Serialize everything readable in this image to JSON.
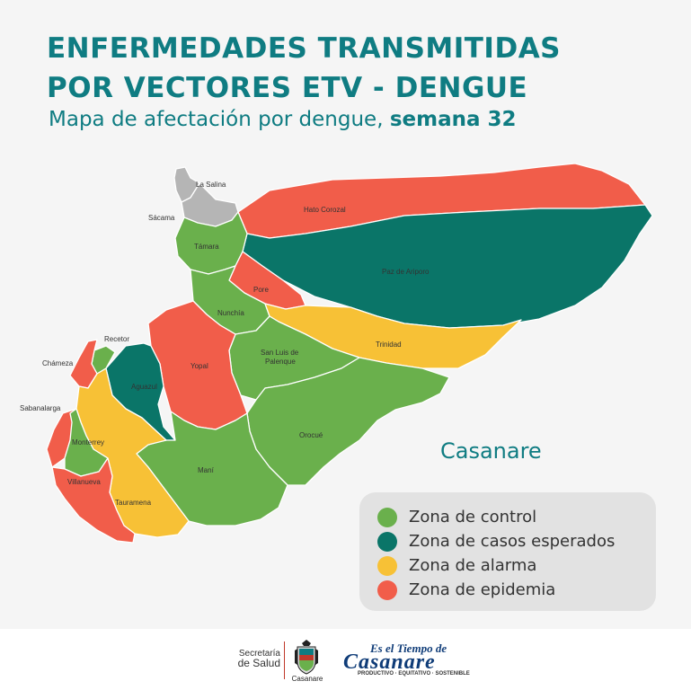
{
  "header": {
    "title_line1": "ENFERMEDADES TRANSMITIDAS",
    "title_line2": "POR VECTORES ETV - DENGUE",
    "subtitle_prefix": "Mapa de afectación por dengue,",
    "subtitle_bold": "semana 32"
  },
  "map": {
    "region_name": "Casanare",
    "colors": {
      "control": "#6ab04c",
      "esperados": "#0a7568",
      "alarma": "#f7c136",
      "epidemia": "#f15d4a",
      "sin_dato": "#b5b5b5"
    },
    "municipalities": [
      {
        "name": "Hato Corozal",
        "zone": "epidemia"
      },
      {
        "name": "Paz de Ariporo",
        "zone": "esperados"
      },
      {
        "name": "La Salina",
        "zone": "sin_dato"
      },
      {
        "name": "Sácama",
        "zone": "sin_dato"
      },
      {
        "name": "Támara",
        "zone": "control"
      },
      {
        "name": "Pore",
        "zone": "epidemia"
      },
      {
        "name": "Nunchía",
        "zone": "control"
      },
      {
        "name": "Trinidad",
        "zone": "alarma"
      },
      {
        "name": "San Luis de Palenque",
        "zone": "control"
      },
      {
        "name": "Yopal",
        "zone": "epidemia"
      },
      {
        "name": "Aguazul",
        "zone": "esperados"
      },
      {
        "name": "Recetor",
        "zone": "control"
      },
      {
        "name": "Chámeza",
        "zone": "epidemia"
      },
      {
        "name": "Sabanalarga",
        "zone": "epidemia"
      },
      {
        "name": "Monterrey",
        "zone": "control"
      },
      {
        "name": "Villanueva",
        "zone": "epidemia"
      },
      {
        "name": "Tauramena",
        "zone": "alarma"
      },
      {
        "name": "Maní",
        "zone": "control"
      },
      {
        "name": "Orocué",
        "zone": "control"
      }
    ]
  },
  "legend": {
    "items": [
      {
        "label": "Zona de control",
        "color": "#6ab04c"
      },
      {
        "label": "Zona de casos esperados",
        "color": "#0a7568"
      },
      {
        "label": "Zona de alarma",
        "color": "#f7c136"
      },
      {
        "label": "Zona de epidemia",
        "color": "#f15d4a"
      }
    ]
  },
  "footer": {
    "secretaria_line1": "Secretaría",
    "secretaria_line2": "de Salud",
    "crest_label": "Casanare",
    "brand_top": "Es el Tiempo de",
    "brand_main": "Casanare",
    "brand_tagline": "PRODUCTIVO · EQUITATIVO · SOSTENIBLE"
  }
}
